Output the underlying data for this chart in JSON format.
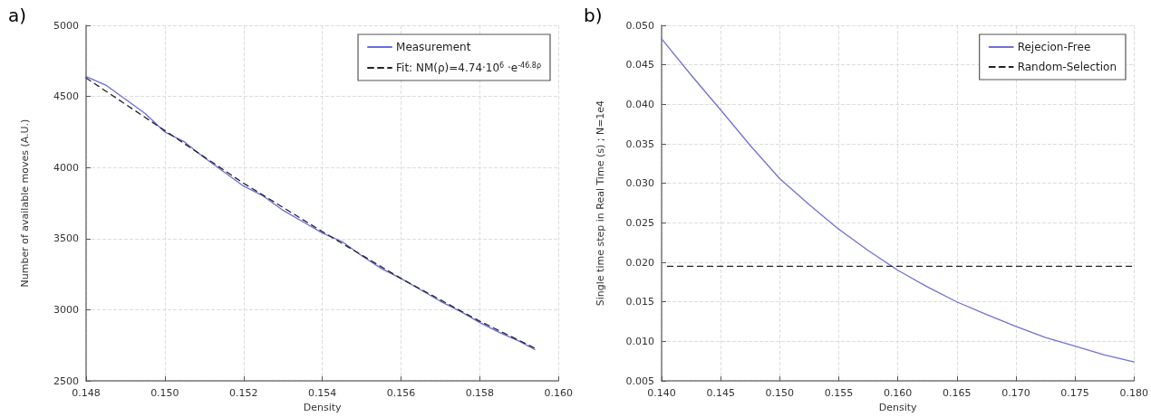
{
  "chart_data": [
    {
      "type": "line",
      "title": "a)",
      "xlabel": "Density",
      "ylabel": "Number of available moves (A.U.)",
      "xlim": [
        0.148,
        0.16
      ],
      "xticks": [
        {
          "value": 0.148,
          "label": "0.148"
        },
        {
          "value": 0.15,
          "label": "0.150"
        },
        {
          "value": 0.152,
          "label": "0.152"
        },
        {
          "value": 0.154,
          "label": "0.154"
        },
        {
          "value": 0.156,
          "label": "0.156"
        },
        {
          "value": 0.158,
          "label": "0.158"
        },
        {
          "value": 0.16,
          "label": "0.160"
        }
      ],
      "ylim": [
        2500,
        5000
      ],
      "yticks": [
        2500,
        3000,
        3500,
        4000,
        4500,
        5000
      ],
      "grid": true,
      "legend": "top right",
      "marker": "none",
      "series": [
        {
          "name": "Measurement",
          "color": "#6b6be0",
          "line_style": "solid",
          "x": [
            0.148,
            0.1485,
            0.149,
            0.1495,
            0.15,
            0.1505,
            0.151,
            0.1515,
            0.152,
            0.1525,
            0.153,
            0.1535,
            0.154,
            0.1545,
            0.155,
            0.1555,
            0.156,
            0.1565,
            0.157,
            0.1575,
            0.158,
            0.1585,
            0.159,
            0.1594
          ],
          "values": [
            4640,
            4580,
            4480,
            4380,
            4250,
            4180,
            4070,
            3970,
            3870,
            3800,
            3700,
            3620,
            3540,
            3480,
            3380,
            3290,
            3220,
            3140,
            3060,
            2990,
            2910,
            2840,
            2780,
            2720
          ]
        },
        {
          "name": "Fit: NM(ρ)=4.74·10$^{6}$ ·e$^{-46.8ρ}$",
          "color": "#222222",
          "line_style": "dashed",
          "x": [
            0.148,
            0.15,
            0.152,
            0.154,
            0.156,
            0.158,
            0.1594
          ],
          "values": [
            4630,
            4260,
            3890,
            3550,
            3220,
            2920,
            2730
          ]
        }
      ]
    },
    {
      "type": "line",
      "title": "b)",
      "xlabel": "Density",
      "ylabel": "Single time step in Real Time (s) ; N=1e4",
      "xlim": [
        0.14,
        0.18
      ],
      "xticks": [
        {
          "value": 0.14,
          "label": "0.140"
        },
        0.145,
        {
          "value": 0.15,
          "label": "0.150"
        },
        0.155,
        {
          "value": 0.16,
          "label": "0.160"
        },
        0.165,
        {
          "value": 0.17,
          "label": "0.170"
        },
        0.175,
        {
          "value": 0.18,
          "label": "0.180"
        }
      ],
      "ylim": [
        0.005,
        0.05
      ],
      "yticks": [
        0.005,
        {
          "value": 0.01,
          "label": "0.010"
        },
        0.015,
        {
          "value": 0.02,
          "label": "0.020"
        },
        0.025,
        {
          "value": 0.03,
          "label": "0.030"
        },
        0.035,
        {
          "value": 0.04,
          "label": "0.040"
        },
        0.045,
        {
          "value": 0.05,
          "label": "0.050"
        }
      ],
      "grid": true,
      "legend": "top right",
      "marker": "none",
      "series": [
        {
          "name": "Rejecion-Free",
          "color": "#7070d8",
          "line_style": "solid",
          "x": [
            0.14,
            0.1425,
            0.145,
            0.1475,
            0.15,
            0.1525,
            0.155,
            0.1575,
            0.16,
            0.1625,
            0.165,
            0.1675,
            0.17,
            0.1725,
            0.175,
            0.1775,
            0.18
          ],
          "values": [
            0.0483,
            0.0437,
            0.0393,
            0.0348,
            0.0306,
            0.0273,
            0.0242,
            0.0215,
            0.019,
            0.0169,
            0.015,
            0.0134,
            0.0119,
            0.0105,
            0.0094,
            0.0083,
            0.0074
          ]
        },
        {
          "name": "Random-Selection",
          "color": "#222222",
          "line_style": "dashed",
          "x": [
            0.1405,
            0.18
          ],
          "values": [
            0.0195,
            0.0195
          ]
        }
      ]
    }
  ]
}
